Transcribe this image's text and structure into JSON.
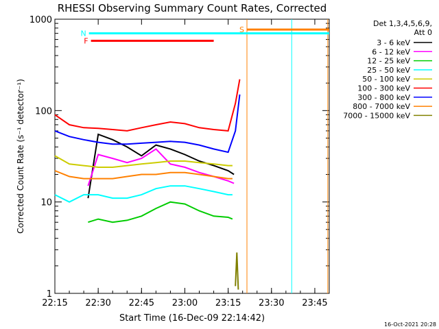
{
  "chart_data": {
    "type": "line",
    "title": "RHESSI Observing Summary Count Rates, Corrected",
    "xlabel": "Start Time (16-Dec-09 22:14:42)",
    "ylabel": "Corrected Count Rate (s⁻¹ detector⁻¹)",
    "y_scale": "log",
    "ylim": [
      1,
      1000
    ],
    "xlim_minutes_after_2215": [
      0,
      95
    ],
    "x_ticks": [
      "22:15",
      "22:30",
      "22:45",
      "23:00",
      "23:15",
      "23:30",
      "23:45"
    ],
    "x_tick_minutes": [
      0,
      15,
      30,
      45,
      60,
      75,
      90
    ],
    "y_ticks": [
      "1",
      "10",
      "100",
      "1000"
    ],
    "y_tick_values": [
      1,
      10,
      100,
      1000
    ],
    "legend_title": "Det 1,3,4,5,6,9,",
    "legend_subtitle": "Att 0",
    "legend_placement": "right",
    "series": [
      {
        "name": "3 - 6 keV",
        "color": "#000000",
        "x": [
          11.5,
          15,
          20,
          25,
          30,
          35,
          40,
          45,
          50,
          55,
          60,
          62
        ],
        "values": [
          11,
          55,
          48,
          40,
          32,
          42,
          38,
          33,
          28,
          25,
          22,
          20
        ]
      },
      {
        "name": "6 - 12 keV",
        "color": "#ff00ff",
        "x": [
          11.5,
          15,
          20,
          25,
          30,
          35,
          40,
          45,
          50,
          55,
          60,
          62
        ],
        "values": [
          15,
          33,
          30,
          27,
          30,
          38,
          26,
          24,
          21,
          19,
          17,
          16
        ]
      },
      {
        "name": "12 - 25 keV",
        "color": "#00cc00",
        "x": [
          11.5,
          15,
          20,
          25,
          30,
          35,
          40,
          45,
          50,
          55,
          60,
          61.5
        ],
        "values": [
          6,
          6.5,
          6,
          6.3,
          7,
          8.5,
          10,
          9.5,
          8,
          7,
          6.8,
          6.5
        ]
      },
      {
        "name": "25 - 50 keV",
        "color": "#00ffff",
        "x": [
          0,
          5,
          10,
          15,
          20,
          25,
          30,
          35,
          40,
          45,
          50,
          55,
          60,
          61.5
        ],
        "values": [
          12,
          10,
          12,
          12,
          11,
          11,
          12,
          14,
          15,
          15,
          14,
          13,
          12,
          12
        ]
      },
      {
        "name": "50 - 100 keV",
        "color": "#cccc00",
        "x": [
          0,
          5,
          10,
          15,
          20,
          25,
          30,
          35,
          40,
          45,
          50,
          55,
          60,
          61.5
        ],
        "values": [
          32,
          26,
          25,
          24,
          24,
          25,
          26,
          27,
          28,
          28,
          27,
          26,
          25,
          25
        ]
      },
      {
        "name": "100 - 300 keV",
        "color": "#ff0000",
        "x": [
          0,
          5,
          10,
          15,
          20,
          25,
          30,
          35,
          40,
          45,
          50,
          55,
          60,
          62.5,
          64
        ],
        "values": [
          90,
          70,
          65,
          64,
          62,
          60,
          65,
          70,
          75,
          72,
          65,
          62,
          60,
          120,
          220
        ]
      },
      {
        "name": "300 - 800 keV",
        "color": "#0000ff",
        "x": [
          0,
          5,
          10,
          15,
          20,
          25,
          30,
          35,
          40,
          45,
          50,
          55,
          60,
          62.5,
          64
        ],
        "values": [
          60,
          52,
          48,
          45,
          43,
          43,
          44,
          45,
          46,
          45,
          42,
          38,
          35,
          60,
          150
        ]
      },
      {
        "name": "800 - 7000 keV",
        "color": "#ff8000",
        "x": [
          0,
          5,
          10,
          15,
          20,
          25,
          30,
          35,
          40,
          45,
          50,
          55,
          60,
          61.5
        ],
        "values": [
          22,
          19,
          18,
          18,
          18,
          19,
          20,
          20,
          21,
          21,
          20,
          19,
          18,
          18
        ]
      },
      {
        "name": "7000 - 15000 keV",
        "color": "#808000",
        "x": [
          62.5,
          63,
          63.5
        ],
        "values": [
          1.2,
          2.8,
          1.1
        ]
      }
    ],
    "flags": [
      {
        "label": "N",
        "color": "#00ffff",
        "x_start": 11.8,
        "x_end": 95,
        "level": 700
      },
      {
        "label": "F",
        "color": "#ff0000",
        "x_start": 12.5,
        "x_end": 55,
        "level": 580
      },
      {
        "label": "S",
        "color": "#ff8000",
        "x_start": 66.5,
        "x_end": 95,
        "level": 770
      }
    ],
    "vertical_lines": [
      {
        "color": "#ff8000",
        "x": 66.5
      },
      {
        "color": "#00ffff",
        "x": 82
      },
      {
        "color": "#ff8000",
        "x": 94.5
      }
    ],
    "footer_timestamp": "16-Oct-2021 20:28"
  }
}
